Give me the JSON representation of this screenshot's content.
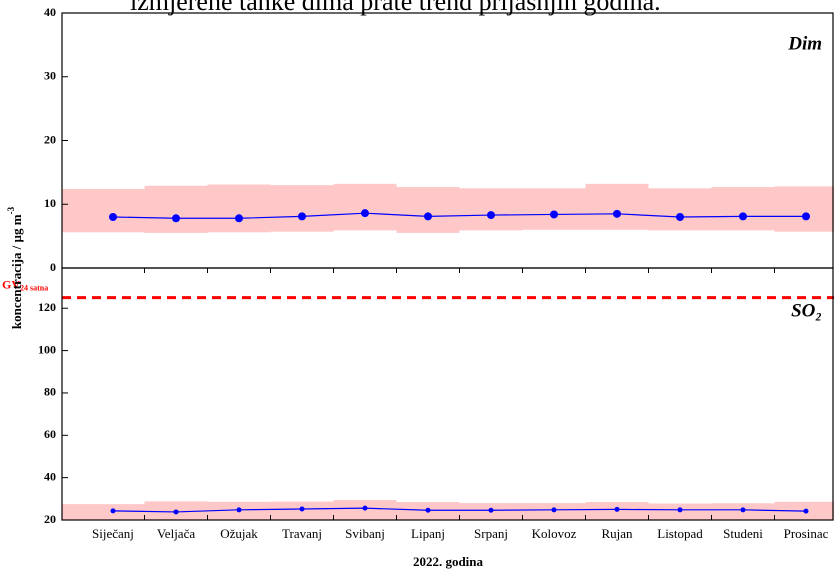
{
  "caption": "izmjerene tanke dima prate trend prijašnjih godina.",
  "chart_data": [
    {
      "type": "line",
      "label": "Dim",
      "ylim": [
        0,
        40
      ],
      "yticks": [
        0,
        10,
        20,
        30,
        40
      ],
      "series": [
        {
          "color": "#0000ff",
          "values": [
            8.0,
            7.8,
            7.8,
            8.1,
            8.6,
            8.1,
            8.3,
            8.4,
            8.5,
            8.0,
            8.1,
            8.1
          ]
        }
      ],
      "band_color": "#ffc8c8",
      "band_upper": [
        12.4,
        12.9,
        13.1,
        13.0,
        13.2,
        12.7,
        12.5,
        12.5,
        13.2,
        12.5,
        12.7,
        12.8
      ],
      "band_lower": [
        5.6,
        5.5,
        5.6,
        5.7,
        5.9,
        5.5,
        5.9,
        6.0,
        6.0,
        5.9,
        5.9,
        5.7
      ]
    },
    {
      "type": "line",
      "label": "SO₂",
      "ylim": [
        20,
        139
      ],
      "yticks": [
        20,
        40,
        60,
        80,
        100,
        120
      ],
      "categories": [
        "Siječanj",
        "Veljača",
        "Ožujak",
        "Travanj",
        "Svibanj",
        "Lipanj",
        "Srpanj",
        "Kolovoz",
        "Rujan",
        "Listopad",
        "Studeni",
        "Prosinac"
      ],
      "series": [
        {
          "color": "#0000ff",
          "values": [
            24.3,
            23.8,
            24.8,
            25.2,
            25.6,
            24.6,
            24.6,
            24.8,
            25.0,
            24.8,
            24.8,
            24.2
          ]
        }
      ],
      "band_color": "#ffc8c8",
      "band_upper": [
        27.5,
        28.8,
        28.6,
        28.7,
        29.4,
        28.5,
        28.0,
        28.0,
        28.5,
        27.8,
        27.9,
        28.6
      ],
      "band_lower": [
        20,
        20,
        20,
        20,
        20,
        20,
        20,
        20,
        20,
        20,
        20,
        20
      ],
      "limit": {
        "value": 125,
        "label": "GV",
        "label_sub": "24 satna",
        "color": "#ff0000"
      },
      "xlabel": "2022. godina",
      "ylabel": "koncentracija / µg m",
      "ylabel_sup": "-3"
    }
  ]
}
